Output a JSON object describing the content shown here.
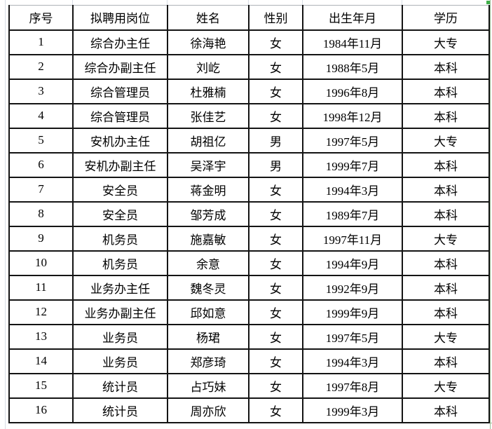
{
  "table": {
    "columns": [
      "序号",
      "拟聘用岗位",
      "姓名",
      "性别",
      "出生年月",
      "学历"
    ],
    "rows": [
      {
        "no": "1",
        "position": "综合办主任",
        "name": "徐海艳",
        "gender": "女",
        "birth": "1984年11月",
        "education": "大专"
      },
      {
        "no": "2",
        "position": "综合办副主任",
        "name": "刘屹",
        "gender": "女",
        "birth": "1988年5月",
        "education": "本科"
      },
      {
        "no": "3",
        "position": "综合管理员",
        "name": "杜雅楠",
        "gender": "女",
        "birth": "1996年8月",
        "education": "本科"
      },
      {
        "no": "4",
        "position": "综合管理员",
        "name": "张佳艺",
        "gender": "女",
        "birth": "1998年12月",
        "education": "本科"
      },
      {
        "no": "5",
        "position": "安机办主任",
        "name": "胡祖亿",
        "gender": "男",
        "birth": "1997年5月",
        "education": "大专"
      },
      {
        "no": "6",
        "position": "安机办副主任",
        "name": "吴泽宇",
        "gender": "男",
        "birth": "1999年7月",
        "education": "本科"
      },
      {
        "no": "7",
        "position": "安全员",
        "name": "蒋金明",
        "gender": "女",
        "birth": "1994年3月",
        "education": "本科"
      },
      {
        "no": "8",
        "position": "安全员",
        "name": "邹芳成",
        "gender": "女",
        "birth": "1989年7月",
        "education": "本科"
      },
      {
        "no": "9",
        "position": "机务员",
        "name": "施嘉敏",
        "gender": "女",
        "birth": "1997年11月",
        "education": "大专"
      },
      {
        "no": "10",
        "position": "机务员",
        "name": "余意",
        "gender": "女",
        "birth": "1994年9月",
        "education": "本科"
      },
      {
        "no": "11",
        "position": "业务办主任",
        "name": "魏冬灵",
        "gender": "女",
        "birth": "1992年9月",
        "education": "本科"
      },
      {
        "no": "12",
        "position": "业务办副主任",
        "name": "邱如意",
        "gender": "女",
        "birth": "1999年9月",
        "education": "本科"
      },
      {
        "no": "13",
        "position": "业务员",
        "name": "杨珺",
        "gender": "女",
        "birth": "1997年5月",
        "education": "大专"
      },
      {
        "no": "14",
        "position": "业务员",
        "name": "郑彦琦",
        "gender": "女",
        "birth": "1994年3月",
        "education": "本科"
      },
      {
        "no": "15",
        "position": "统计员",
        "name": "占巧妹",
        "gender": "女",
        "birth": "1997年8月",
        "education": "大专"
      },
      {
        "no": "16",
        "position": "统计员",
        "name": "周亦欣",
        "gender": "女",
        "birth": "1999年3月",
        "education": "本科"
      }
    ]
  },
  "colors": {
    "table_border": "#141414",
    "spreadsheet_gridline": "#d8dde5",
    "selection_green": "#3fae49",
    "background": "#ffffff"
  }
}
